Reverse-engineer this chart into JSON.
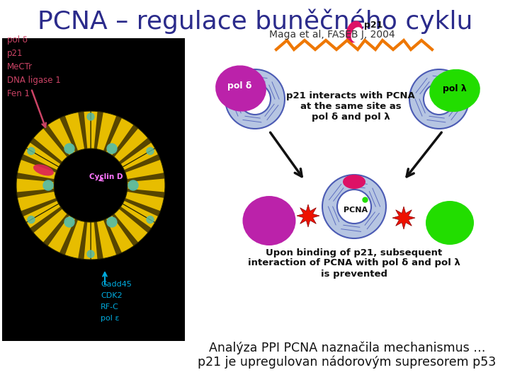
{
  "title": "PCNA – regulace buněčného cyklu",
  "title_color": "#2b2b8b",
  "title_fontsize": 26,
  "subtitle": "Maga et al, FASEB J, 2004",
  "subtitle_color": "#333333",
  "subtitle_fontsize": 10,
  "caption_line1": "Analýza PPI PCNA naznačila mechanismus …",
  "caption_line2": "p21 je upregulovan nádorovým supresorem p53",
  "caption_color": "#111111",
  "caption_fontsize": 12.5,
  "left_labels": [
    "pol δ",
    "p21",
    "MeCTr",
    "DNA ligase 1",
    "Fen 1"
  ],
  "left_label_color": "#cc4466",
  "bottom_labels": [
    "pol ε",
    "RF-C",
    "CDK2",
    "Gadd45"
  ],
  "bottom_label_color": "#00aadd",
  "bg_color": "#ffffff",
  "right_text1": "p21 interacts with PCNA\nat the same site as\npol δ and pol λ",
  "right_text2": "Upon binding of p21, subsequent\ninteraction of PCNA with pol δ and pol λ\nis prevented",
  "p21_label": "p21",
  "pol_d_label": "pol δ",
  "pol_l_label": "pol λ",
  "pcna_label": "PCNA"
}
